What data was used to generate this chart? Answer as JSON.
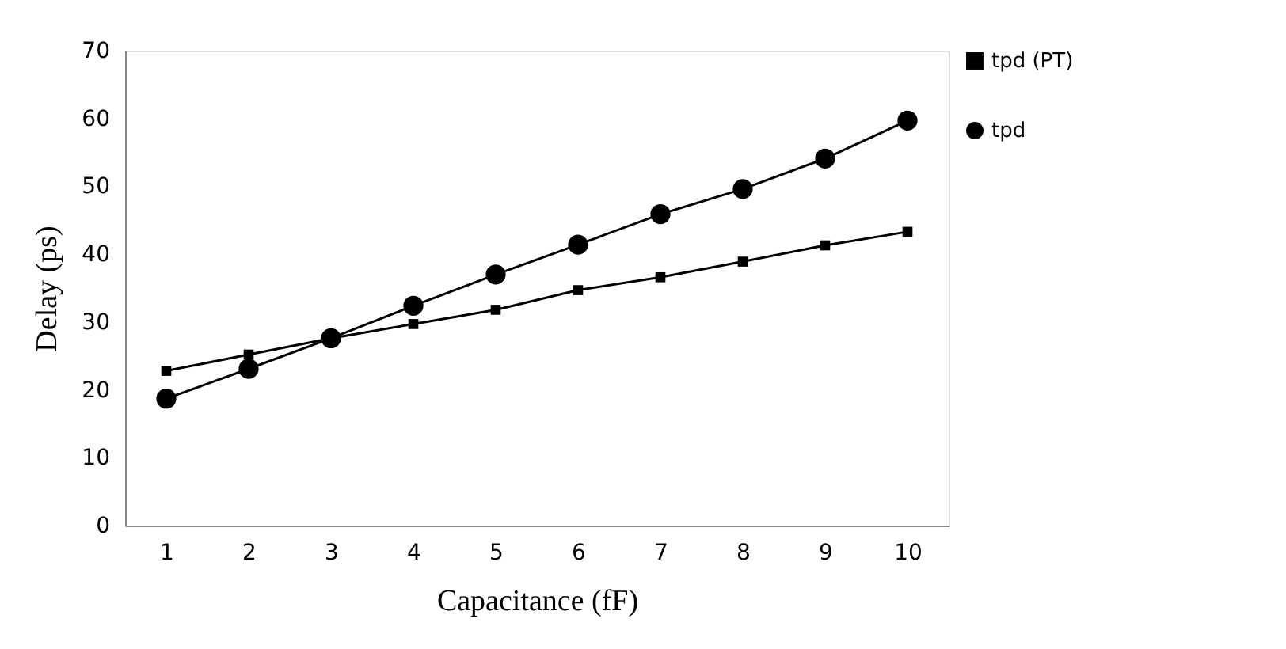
{
  "chart_data": {
    "type": "line",
    "xlabel": "Capacitance (fF)",
    "ylabel": "Delay (ps)",
    "categories": [
      "1",
      "2",
      "3",
      "4",
      "5",
      "6",
      "7",
      "8",
      "9",
      "10"
    ],
    "ylim": [
      0,
      70
    ],
    "yticks": [
      0,
      10,
      20,
      30,
      40,
      50,
      60,
      70
    ],
    "grid": false,
    "legend": "right",
    "series": [
      {
        "name": "tpd (PT)",
        "color": "#000000",
        "marker": "square",
        "values": [
          22.8,
          25.2,
          27.6,
          29.7,
          31.8,
          34.7,
          36.6,
          38.9,
          41.3,
          43.3
        ]
      },
      {
        "name": "tpd",
        "color": "#000000",
        "marker": "circle",
        "values": [
          18.7,
          23.1,
          27.6,
          32.4,
          37.0,
          41.4,
          45.9,
          49.6,
          54.1,
          59.7
        ]
      }
    ]
  }
}
